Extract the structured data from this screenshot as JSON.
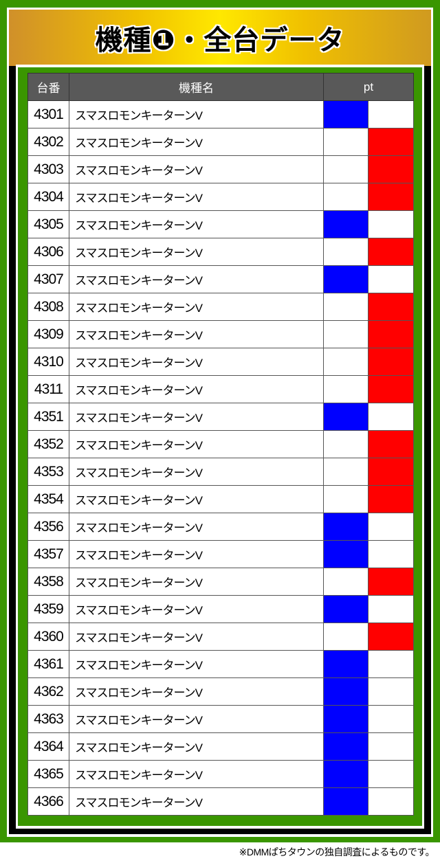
{
  "title": "機種❶・全台データ",
  "headers": {
    "number": "台番",
    "model": "機種名",
    "pt": "pt"
  },
  "colors": {
    "frame": "#3a9600",
    "minus": "#0000ff",
    "plus": "#ff0000"
  },
  "rows": [
    {
      "number": "4301",
      "model": "スマスロモンキーターンV",
      "pt": "minus"
    },
    {
      "number": "4302",
      "model": "スマスロモンキーターンV",
      "pt": "plus"
    },
    {
      "number": "4303",
      "model": "スマスロモンキーターンV",
      "pt": "plus"
    },
    {
      "number": "4304",
      "model": "スマスロモンキーターンV",
      "pt": "plus"
    },
    {
      "number": "4305",
      "model": "スマスロモンキーターンV",
      "pt": "minus"
    },
    {
      "number": "4306",
      "model": "スマスロモンキーターンV",
      "pt": "plus"
    },
    {
      "number": "4307",
      "model": "スマスロモンキーターンV",
      "pt": "minus"
    },
    {
      "number": "4308",
      "model": "スマスロモンキーターンV",
      "pt": "plus"
    },
    {
      "number": "4309",
      "model": "スマスロモンキーターンV",
      "pt": "plus"
    },
    {
      "number": "4310",
      "model": "スマスロモンキーターンV",
      "pt": "plus"
    },
    {
      "number": "4311",
      "model": "スマスロモンキーターンV",
      "pt": "plus"
    },
    {
      "number": "4351",
      "model": "スマスロモンキーターンV",
      "pt": "minus"
    },
    {
      "number": "4352",
      "model": "スマスロモンキーターンV",
      "pt": "plus"
    },
    {
      "number": "4353",
      "model": "スマスロモンキーターンV",
      "pt": "plus"
    },
    {
      "number": "4354",
      "model": "スマスロモンキーターンV",
      "pt": "plus"
    },
    {
      "number": "4356",
      "model": "スマスロモンキーターンV",
      "pt": "minus"
    },
    {
      "number": "4357",
      "model": "スマスロモンキーターンV",
      "pt": "minus"
    },
    {
      "number": "4358",
      "model": "スマスロモンキーターンV",
      "pt": "plus"
    },
    {
      "number": "4359",
      "model": "スマスロモンキーターンV",
      "pt": "minus"
    },
    {
      "number": "4360",
      "model": "スマスロモンキーターンV",
      "pt": "plus"
    },
    {
      "number": "4361",
      "model": "スマスロモンキーターンV",
      "pt": "minus"
    },
    {
      "number": "4362",
      "model": "スマスロモンキーターンV",
      "pt": "minus"
    },
    {
      "number": "4363",
      "model": "スマスロモンキーターンV",
      "pt": "minus"
    },
    {
      "number": "4364",
      "model": "スマスロモンキーターンV",
      "pt": "minus"
    },
    {
      "number": "4365",
      "model": "スマスロモンキーターンV",
      "pt": "minus"
    },
    {
      "number": "4366",
      "model": "スマスロモンキーターンV",
      "pt": "minus"
    }
  ],
  "footer": "※DMMぱちタウンの独自調査によるものです。"
}
